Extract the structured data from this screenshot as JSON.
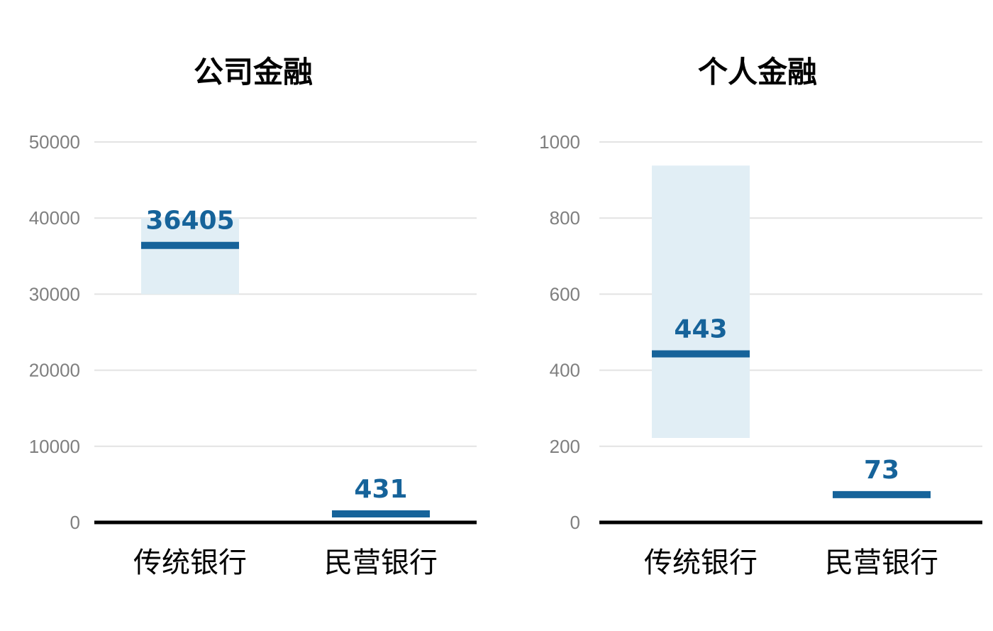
{
  "chart_data": [
    {
      "type": "bar",
      "title": "公司金融",
      "categories": [
        "传统银行",
        "民营银行"
      ],
      "series": [
        {
          "values": [
            36405,
            431
          ],
          "value_labels": [
            "36405",
            "431"
          ],
          "range_low": [
            30000,
            null
          ],
          "range_high": [
            40000,
            null
          ]
        }
      ],
      "ylim": [
        0,
        50000
      ],
      "yticks": [
        "0",
        "10000",
        "20000",
        "30000",
        "40000",
        "50000"
      ],
      "xlabel": "",
      "ylabel": "",
      "grid": true,
      "legend": "none"
    },
    {
      "type": "bar",
      "title": "个人金融",
      "categories": [
        "传统银行",
        "民营银行"
      ],
      "series": [
        {
          "values": [
            443,
            73
          ],
          "value_labels": [
            "443",
            "73"
          ],
          "range_low": [
            222,
            null
          ],
          "range_high": [
            938,
            null
          ]
        }
      ],
      "ylim": [
        0,
        1000
      ],
      "yticks": [
        "0",
        "200",
        "400",
        "600",
        "800",
        "1000"
      ],
      "xlabel": "",
      "ylabel": "",
      "grid": true,
      "legend": "none"
    }
  ],
  "colors": {
    "marker": "#16639a",
    "range_band": "#e1eef5",
    "grid": "#e3e3e3",
    "axis": "#000000",
    "tick_text": "#7f7f7f"
  }
}
